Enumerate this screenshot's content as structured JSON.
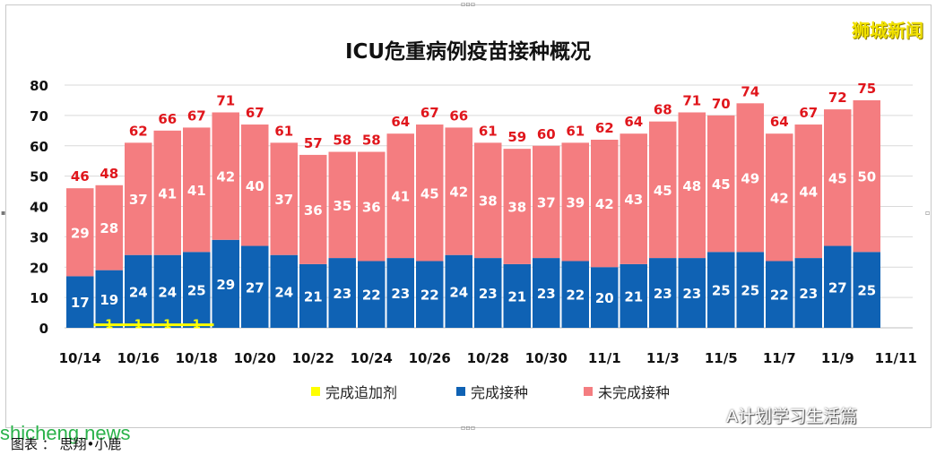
{
  "brand": "狮城新闻",
  "watermark": "shicheng.news",
  "caption": "图表 ： 思翔•小鹿",
  "wechat": "A计划学习生活篇",
  "colors": {
    "booster": "#ffff00",
    "complete": "#0f62b4",
    "incomplete": "#f47d80",
    "label_red": "#e0161c"
  },
  "chart_data": {
    "type": "bar",
    "stacked": true,
    "title": "ICU危重病例疫苗接种概况",
    "ylim": [
      0,
      80
    ],
    "yticks": [
      0,
      10,
      20,
      30,
      40,
      50,
      60,
      70,
      80
    ],
    "x_tick_labels": [
      "10/14",
      "10/16",
      "10/18",
      "10/20",
      "10/22",
      "10/24",
      "10/26",
      "10/28",
      "10/30",
      "11/1",
      "11/3",
      "11/5",
      "11/7",
      "11/9",
      "11/11"
    ],
    "categories": [
      "10/14",
      "10/15",
      "10/16",
      "10/17",
      "10/18",
      "10/19",
      "10/20",
      "10/21",
      "10/22",
      "10/23",
      "10/24",
      "10/25",
      "10/26",
      "10/27",
      "10/28",
      "10/29",
      "10/30",
      "10/31",
      "11/1",
      "11/2",
      "11/3",
      "11/4",
      "11/5",
      "11/6",
      "11/7",
      "11/8",
      "11/9",
      "11/10"
    ],
    "series": [
      {
        "name": "完成追加剂",
        "values": [
          0,
          1,
          1,
          1,
          1,
          0,
          0,
          0,
          0,
          0,
          0,
          0,
          0,
          0,
          0,
          0,
          0,
          0,
          0,
          0,
          0,
          0,
          0,
          0,
          0,
          0,
          0,
          0
        ]
      },
      {
        "name": "完成接种",
        "values": [
          17,
          19,
          24,
          24,
          25,
          29,
          27,
          24,
          21,
          23,
          22,
          23,
          22,
          24,
          23,
          21,
          23,
          22,
          20,
          21,
          23,
          23,
          25,
          25,
          22,
          23,
          27,
          25
        ]
      },
      {
        "name": "未完成接种",
        "values": [
          29,
          28,
          37,
          41,
          41,
          42,
          40,
          37,
          36,
          35,
          36,
          41,
          45,
          42,
          38,
          38,
          37,
          39,
          42,
          43,
          45,
          48,
          45,
          49,
          42,
          44,
          45,
          50
        ]
      }
    ],
    "totals": [
      46,
      48,
      62,
      66,
      67,
      71,
      67,
      61,
      57,
      58,
      58,
      64,
      67,
      66,
      61,
      59,
      60,
      61,
      62,
      64,
      68,
      71,
      70,
      74,
      64,
      67,
      72,
      75
    ],
    "legend": "bottom",
    "grid": true
  }
}
